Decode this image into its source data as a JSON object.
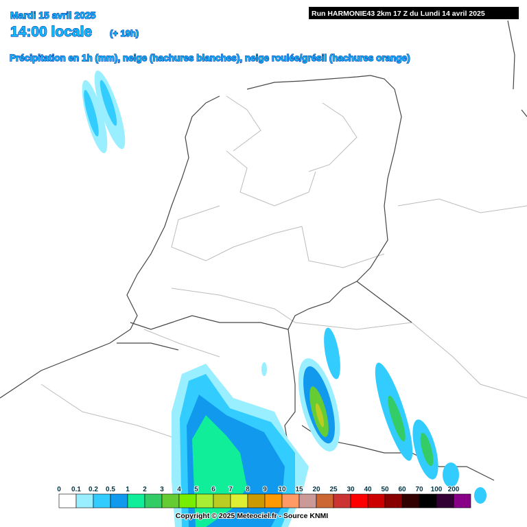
{
  "header": {
    "date": "Mardi 15 avril 2025",
    "time": "14:00 locale",
    "lead": "(+ 19h)",
    "run": "Run HARMONIE43 2km 17 Z du Lundi 14 avril 2025",
    "subtitle": "Précipitation en 1h (mm), neige (hachures blanches), neige roulée/grésil (hachures orange)"
  },
  "legend": {
    "ticks": [
      0,
      0.1,
      0.2,
      0.5,
      1,
      2,
      3,
      4,
      5,
      6,
      7,
      8,
      9,
      10,
      15,
      20,
      25,
      30,
      40,
      50,
      60,
      70,
      100,
      200
    ],
    "colors": [
      "#ffffff",
      "#99eeff",
      "#33ccff",
      "#1199ee",
      "#11ee99",
      "#33cc66",
      "#66cc33",
      "#77ee00",
      "#aaee33",
      "#bbcc22",
      "#ddee33",
      "#cc9900",
      "#ff9900",
      "#ff9966",
      "#cc9999",
      "#cc6633",
      "#cc3333",
      "#ff0000",
      "#cc0000",
      "#880000",
      "#330000",
      "#000000",
      "#330033",
      "#880088"
    ]
  },
  "footer": {
    "copyright": "Copyright © 2025 Meteociel.fr - Source KNMI"
  }
}
